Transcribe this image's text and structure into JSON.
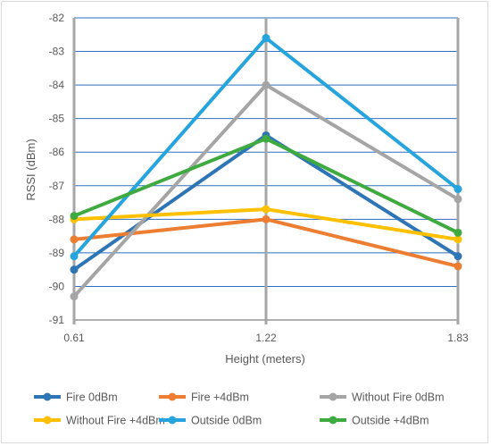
{
  "chart_data": {
    "type": "line",
    "title": "",
    "xlabel": "Height (meters)",
    "ylabel": "RSSI (dBm)",
    "categories": [
      "0.61",
      "1.22",
      "1.83"
    ],
    "ylim": [
      -91,
      -82
    ],
    "yticks": [
      -82,
      -83,
      -84,
      -85,
      -86,
      -87,
      -88,
      -89,
      -90,
      -91
    ],
    "grid": "on",
    "legend_position": "bottom",
    "series": [
      {
        "name": "Fire 0dBm",
        "color": "#2e75b6",
        "values": [
          -89.5,
          -85.5,
          -89.1
        ]
      },
      {
        "name": "Fire +4dBm",
        "color": "#ed7d31",
        "values": [
          -88.6,
          -88.0,
          -89.4
        ]
      },
      {
        "name": "Without Fire 0dBm",
        "color": "#a5a5a5",
        "values": [
          -90.3,
          -84.0,
          -87.4
        ]
      },
      {
        "name": "Without Fire +4dBm",
        "color": "#ffc000",
        "values": [
          -88.0,
          -87.7,
          -88.6
        ]
      },
      {
        "name": "Outside 0dBm",
        "color": "#25a4dd",
        "values": [
          -89.1,
          -82.6,
          -87.1
        ]
      },
      {
        "name": "Outside +4dBm",
        "color": "#3faa3f",
        "values": [
          -87.9,
          -85.6,
          -88.4
        ]
      }
    ]
  }
}
